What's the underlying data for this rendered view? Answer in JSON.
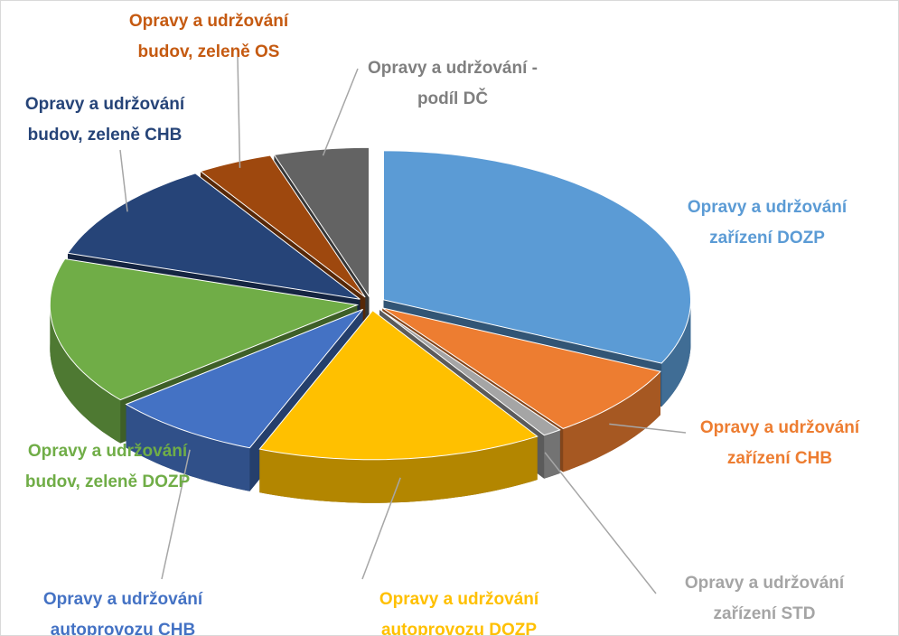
{
  "chart_data": {
    "type": "pie",
    "categories": [
      "Opravy a udržování zařízení DOZP",
      "Opravy a udržování zařízení CHB",
      "Opravy a udržování zařízení STD",
      "Opravy a udržování autoprovozu DOZP",
      "Opravy a udržování autoprovozu CHB",
      "Opravy a udržování budov, zeleně DOZP",
      "Opravy a udržování budov, zeleně CHB",
      "Opravy a udržování budov, zeleně OS",
      "Opravy a udržování - podíl DČ"
    ],
    "values": [
      32,
      8,
      1,
      15,
      8,
      16,
      11,
      4,
      5
    ],
    "colors": [
      "#5b9bd5",
      "#ed7d31",
      "#a5a5a5",
      "#ffc000",
      "#4472c4",
      "#70ad47",
      "#264478",
      "#9e480e",
      "#636363"
    ],
    "label_colors": [
      "#5b9bd5",
      "#ed7d31",
      "#a5a5a5",
      "#ffc000",
      "#4472c4",
      "#70ad47",
      "#264478",
      "#c55a11",
      "#7f7f7f"
    ]
  }
}
